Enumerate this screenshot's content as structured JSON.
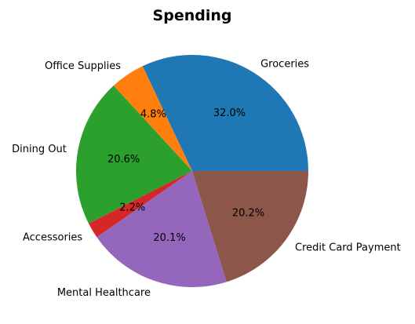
{
  "chart_data": {
    "type": "pie",
    "title": "Spending",
    "start_angle_deg": 0,
    "direction": "counterclockwise",
    "slices": [
      {
        "label": "Groceries",
        "percent": 32.0,
        "pct_label": "32.0%",
        "color": "#1f77b4"
      },
      {
        "label": "Office Supplies",
        "percent": 4.8,
        "pct_label": "4.8%",
        "color": "#ff7f0e"
      },
      {
        "label": "Dining Out",
        "percent": 20.6,
        "pct_label": "20.6%",
        "color": "#2ca02c"
      },
      {
        "label": "Accessories",
        "percent": 2.2,
        "pct_label": "2.2%",
        "color": "#d62728"
      },
      {
        "label": "Mental Healthcare",
        "percent": 20.1,
        "pct_label": "20.1%",
        "color": "#9467bd"
      },
      {
        "label": "Credit Card Payment",
        "percent": 20.2,
        "pct_label": "20.2%",
        "color": "#8c564b"
      }
    ]
  }
}
